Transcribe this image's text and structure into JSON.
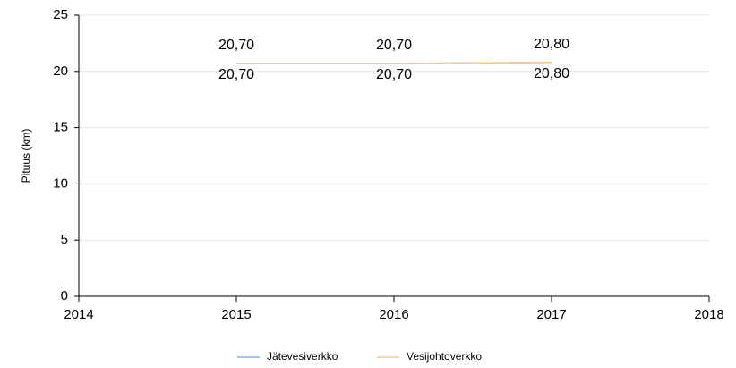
{
  "chart_data": {
    "type": "line",
    "y_label": "Pituus (km)",
    "x": [
      2015,
      2016,
      2017
    ],
    "xlim": [
      2014,
      2018
    ],
    "xticks": [
      2014,
      2015,
      2016,
      2017,
      2018
    ],
    "ylim": [
      0,
      25
    ],
    "yticks": [
      0,
      5,
      10,
      15,
      20,
      25
    ],
    "grid": true,
    "legend": "bottom",
    "series": [
      {
        "name": "Jätevesiverkko",
        "color": "#7cb5ec",
        "values": [
          20.7,
          20.7,
          20.8
        ],
        "value_labels": [
          "20,70",
          "20,70",
          "20,80"
        ]
      },
      {
        "name": "Vesijohtoverkko",
        "color": "#f7c98b",
        "values": [
          20.7,
          20.7,
          20.8
        ],
        "value_labels": [
          "20,70",
          "20,70",
          "20,80"
        ]
      }
    ]
  }
}
